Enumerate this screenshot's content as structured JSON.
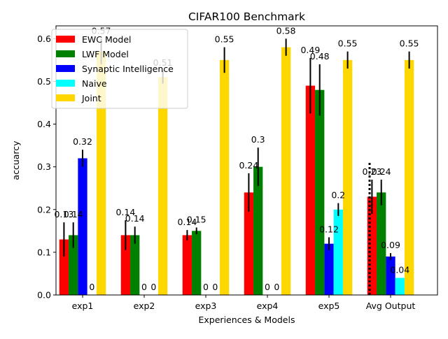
{
  "chart_data": {
    "type": "bar",
    "title": "CIFAR100 Benchmark",
    "xlabel": "Experiences & Models",
    "ylabel": "accuarcy",
    "ylim": [
      0,
      0.63
    ],
    "yticks": [
      "0.0",
      "0.1",
      "0.2",
      "0.3",
      "0.4",
      "0.5",
      "0.6"
    ],
    "categories": [
      "exp1",
      "exp2",
      "exp3",
      "exp4",
      "exp5",
      "Avg Output"
    ],
    "legend_position": "top-left",
    "grid": false,
    "series": [
      {
        "name": "EWC Model",
        "color": "#ff0000",
        "values": [
          0.13,
          0.14,
          0.14,
          0.24,
          0.49,
          0.23
        ],
        "labels": [
          "0.13",
          "0.14",
          "0.14",
          "0.24",
          "0.49",
          "0.23"
        ],
        "errors": [
          0.04,
          0.035,
          0.012,
          0.045,
          0.065,
          0.04
        ]
      },
      {
        "name": "LWF Model",
        "color": "#008000",
        "values": [
          0.14,
          0.14,
          0.15,
          0.3,
          0.48,
          0.24
        ],
        "labels": [
          "0.14",
          "0.14",
          "0.15",
          "0.3",
          "0.48",
          "0.24"
        ],
        "errors": [
          0.03,
          0.02,
          0.008,
          0.045,
          0.06,
          0.03
        ]
      },
      {
        "name": "Synaptic Intelligence",
        "color": "#0000ff",
        "values": [
          0.32,
          0,
          0,
          0,
          0.12,
          0.09
        ],
        "labels": [
          "0.32",
          "0",
          "0",
          "0",
          "0.12",
          "0.09"
        ],
        "errors": [
          0.02,
          0,
          0,
          0,
          0.015,
          0.008
        ]
      },
      {
        "name": "Naive",
        "color": "#00ffff",
        "values": [
          0,
          0,
          0,
          0,
          0.2,
          0.04
        ],
        "labels": [
          "0",
          "0",
          "0",
          "0",
          "0.2",
          "0.04"
        ],
        "errors": [
          0,
          0,
          0,
          0,
          0.015,
          0
        ]
      },
      {
        "name": "Joint",
        "color": "#ffd700",
        "values": [
          0.57,
          0.51,
          0.55,
          0.58,
          0.55,
          0.55
        ],
        "labels": [
          "0.57",
          "0.51",
          "0.55",
          "0.58",
          "0.55",
          "0.55"
        ],
        "errors": [
          0.03,
          0.015,
          0.03,
          0.02,
          0.02,
          0.02
        ]
      }
    ],
    "separator": {
      "style": "dotted",
      "color": "#000000",
      "ymax": 0.31
    }
  }
}
